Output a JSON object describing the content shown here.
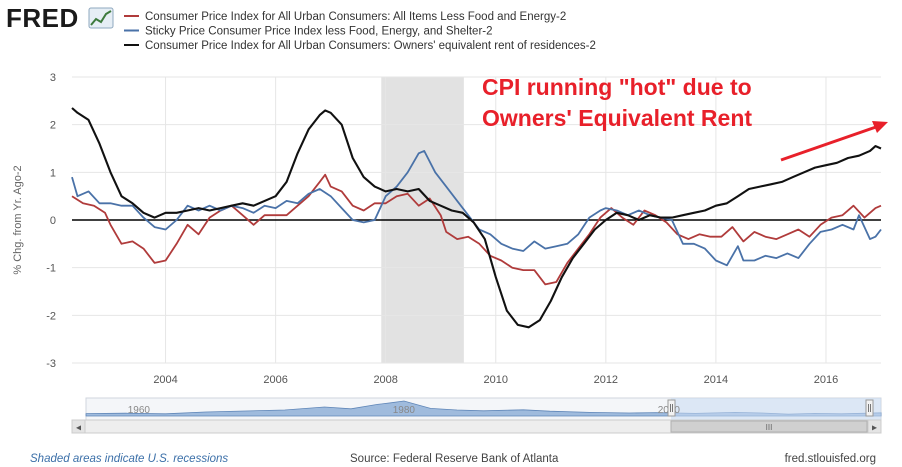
{
  "brand": {
    "logo_text": "FRED"
  },
  "annotation": {
    "lines": [
      "CPI running \"hot\" due to",
      "Owners' Equivalent Rent"
    ],
    "color": "#e8202a"
  },
  "footer": {
    "recession_note": "Shaded areas indicate U.S. recessions",
    "source": "Source: Federal Reserve Bank of Atlanta",
    "site": "fred.stlouisfed.org"
  },
  "navigator": {
    "tick_labels": [
      {
        "x": 1960,
        "label": "1960"
      },
      {
        "x": 1980,
        "label": "1980"
      },
      {
        "x": 2000,
        "label": "2000"
      }
    ],
    "scroll_glyph": "III",
    "left_arrow": "◂",
    "right_arrow": "▸"
  },
  "chart_data": {
    "type": "line",
    "ylabel": "% Chg. from Yr. Ago-2",
    "xlim": [
      2002.3,
      2017.0
    ],
    "ylim": [
      -3,
      3
    ],
    "yticks": [
      -3,
      -2,
      -1,
      0,
      1,
      2,
      3
    ],
    "xticks": [
      2004,
      2006,
      2008,
      2010,
      2012,
      2014,
      2016
    ],
    "grid": true,
    "legend_position": "top-left",
    "recessions": [
      [
        2007.92,
        2009.42
      ]
    ],
    "series": [
      {
        "name": "Consumer Price Index for All Urban Consumers: All Items Less Food and Energy-2",
        "color": "#b03b3b",
        "points": [
          [
            2002.3,
            0.5
          ],
          [
            2002.5,
            0.35
          ],
          [
            2002.7,
            0.3
          ],
          [
            2002.9,
            0.15
          ],
          [
            2003.0,
            -0.1
          ],
          [
            2003.2,
            -0.5
          ],
          [
            2003.4,
            -0.45
          ],
          [
            2003.6,
            -0.6
          ],
          [
            2003.8,
            -0.9
          ],
          [
            2004.0,
            -0.85
          ],
          [
            2004.2,
            -0.5
          ],
          [
            2004.4,
            -0.1
          ],
          [
            2004.6,
            -0.3
          ],
          [
            2004.8,
            0.05
          ],
          [
            2005.0,
            0.2
          ],
          [
            2005.2,
            0.3
          ],
          [
            2005.4,
            0.1
          ],
          [
            2005.6,
            -0.1
          ],
          [
            2005.8,
            0.1
          ],
          [
            2006.0,
            0.1
          ],
          [
            2006.2,
            0.1
          ],
          [
            2006.4,
            0.3
          ],
          [
            2006.6,
            0.5
          ],
          [
            2006.8,
            0.8
          ],
          [
            2006.9,
            0.95
          ],
          [
            2007.0,
            0.7
          ],
          [
            2007.2,
            0.6
          ],
          [
            2007.4,
            0.3
          ],
          [
            2007.6,
            0.2
          ],
          [
            2007.8,
            0.35
          ],
          [
            2008.0,
            0.35
          ],
          [
            2008.2,
            0.5
          ],
          [
            2008.4,
            0.55
          ],
          [
            2008.6,
            0.3
          ],
          [
            2008.8,
            0.45
          ],
          [
            2009.0,
            0.1
          ],
          [
            2009.1,
            -0.25
          ],
          [
            2009.3,
            -0.4
          ],
          [
            2009.5,
            -0.35
          ],
          [
            2009.7,
            -0.5
          ],
          [
            2009.9,
            -0.75
          ],
          [
            2010.1,
            -0.85
          ],
          [
            2010.3,
            -1.0
          ],
          [
            2010.5,
            -1.05
          ],
          [
            2010.7,
            -1.05
          ],
          [
            2010.9,
            -1.35
          ],
          [
            2011.1,
            -1.3
          ],
          [
            2011.3,
            -0.9
          ],
          [
            2011.5,
            -0.6
          ],
          [
            2011.7,
            -0.3
          ],
          [
            2011.9,
            0.05
          ],
          [
            2012.1,
            0.25
          ],
          [
            2012.3,
            0.05
          ],
          [
            2012.5,
            -0.1
          ],
          [
            2012.7,
            0.2
          ],
          [
            2012.9,
            0.1
          ],
          [
            2013.1,
            -0.05
          ],
          [
            2013.3,
            -0.3
          ],
          [
            2013.5,
            -0.4
          ],
          [
            2013.7,
            -0.3
          ],
          [
            2013.9,
            -0.35
          ],
          [
            2014.1,
            -0.35
          ],
          [
            2014.3,
            -0.15
          ],
          [
            2014.5,
            -0.45
          ],
          [
            2014.7,
            -0.25
          ],
          [
            2014.9,
            -0.35
          ],
          [
            2015.1,
            -0.4
          ],
          [
            2015.3,
            -0.3
          ],
          [
            2015.5,
            -0.2
          ],
          [
            2015.7,
            -0.35
          ],
          [
            2015.9,
            -0.1
          ],
          [
            2016.1,
            0.05
          ],
          [
            2016.3,
            0.1
          ],
          [
            2016.5,
            0.3
          ],
          [
            2016.7,
            0.05
          ],
          [
            2016.9,
            0.25
          ],
          [
            2017.0,
            0.3
          ]
        ]
      },
      {
        "name": "Sticky Price Consumer Price Index less Food, Energy, and Shelter-2",
        "color": "#4a72a8",
        "points": [
          [
            2002.3,
            0.9
          ],
          [
            2002.4,
            0.5
          ],
          [
            2002.6,
            0.6
          ],
          [
            2002.8,
            0.35
          ],
          [
            2003.0,
            0.35
          ],
          [
            2003.2,
            0.3
          ],
          [
            2003.4,
            0.3
          ],
          [
            2003.6,
            0.05
          ],
          [
            2003.8,
            -0.15
          ],
          [
            2004.0,
            -0.2
          ],
          [
            2004.2,
            0.0
          ],
          [
            2004.4,
            0.3
          ],
          [
            2004.6,
            0.2
          ],
          [
            2004.8,
            0.3
          ],
          [
            2005.0,
            0.2
          ],
          [
            2005.2,
            0.3
          ],
          [
            2005.4,
            0.25
          ],
          [
            2005.6,
            0.15
          ],
          [
            2005.8,
            0.3
          ],
          [
            2006.0,
            0.25
          ],
          [
            2006.2,
            0.4
          ],
          [
            2006.4,
            0.35
          ],
          [
            2006.6,
            0.55
          ],
          [
            2006.8,
            0.65
          ],
          [
            2007.0,
            0.5
          ],
          [
            2007.2,
            0.25
          ],
          [
            2007.4,
            0.0
          ],
          [
            2007.6,
            -0.05
          ],
          [
            2007.8,
            0.0
          ],
          [
            2008.0,
            0.5
          ],
          [
            2008.2,
            0.7
          ],
          [
            2008.4,
            1.0
          ],
          [
            2008.6,
            1.4
          ],
          [
            2008.7,
            1.45
          ],
          [
            2008.9,
            1.0
          ],
          [
            2009.1,
            0.7
          ],
          [
            2009.3,
            0.4
          ],
          [
            2009.5,
            0.1
          ],
          [
            2009.7,
            -0.2
          ],
          [
            2009.9,
            -0.3
          ],
          [
            2010.1,
            -0.5
          ],
          [
            2010.3,
            -0.6
          ],
          [
            2010.5,
            -0.65
          ],
          [
            2010.7,
            -0.45
          ],
          [
            2010.9,
            -0.6
          ],
          [
            2011.1,
            -0.55
          ],
          [
            2011.3,
            -0.5
          ],
          [
            2011.5,
            -0.3
          ],
          [
            2011.7,
            0.05
          ],
          [
            2011.9,
            0.2
          ],
          [
            2012.0,
            0.25
          ],
          [
            2012.2,
            0.2
          ],
          [
            2012.4,
            0.1
          ],
          [
            2012.6,
            0.2
          ],
          [
            2012.8,
            0.1
          ],
          [
            2013.0,
            0.05
          ],
          [
            2013.2,
            0.0
          ],
          [
            2013.4,
            -0.5
          ],
          [
            2013.6,
            -0.5
          ],
          [
            2013.8,
            -0.6
          ],
          [
            2014.0,
            -0.85
          ],
          [
            2014.2,
            -0.95
          ],
          [
            2014.4,
            -0.55
          ],
          [
            2014.5,
            -0.85
          ],
          [
            2014.7,
            -0.85
          ],
          [
            2014.9,
            -0.75
          ],
          [
            2015.1,
            -0.8
          ],
          [
            2015.3,
            -0.7
          ],
          [
            2015.5,
            -0.8
          ],
          [
            2015.7,
            -0.5
          ],
          [
            2015.9,
            -0.25
          ],
          [
            2016.1,
            -0.2
          ],
          [
            2016.3,
            -0.1
          ],
          [
            2016.5,
            -0.2
          ],
          [
            2016.6,
            0.1
          ],
          [
            2016.8,
            -0.4
          ],
          [
            2016.9,
            -0.35
          ],
          [
            2017.0,
            -0.2
          ]
        ]
      },
      {
        "name": "Consumer Price Index for All Urban Consumers: Owners' equivalent rent of residences-2",
        "color": "#111111",
        "points": [
          [
            2002.3,
            2.35
          ],
          [
            2002.4,
            2.25
          ],
          [
            2002.6,
            2.1
          ],
          [
            2002.8,
            1.6
          ],
          [
            2003.0,
            1.0
          ],
          [
            2003.2,
            0.5
          ],
          [
            2003.4,
            0.35
          ],
          [
            2003.6,
            0.15
          ],
          [
            2003.8,
            0.05
          ],
          [
            2004.0,
            0.15
          ],
          [
            2004.2,
            0.15
          ],
          [
            2004.4,
            0.2
          ],
          [
            2004.6,
            0.25
          ],
          [
            2004.8,
            0.2
          ],
          [
            2005.0,
            0.25
          ],
          [
            2005.2,
            0.3
          ],
          [
            2005.4,
            0.35
          ],
          [
            2005.6,
            0.3
          ],
          [
            2005.8,
            0.4
          ],
          [
            2006.0,
            0.5
          ],
          [
            2006.2,
            0.8
          ],
          [
            2006.4,
            1.4
          ],
          [
            2006.6,
            1.9
          ],
          [
            2006.8,
            2.2
          ],
          [
            2006.9,
            2.3
          ],
          [
            2007.0,
            2.25
          ],
          [
            2007.2,
            2.0
          ],
          [
            2007.4,
            1.3
          ],
          [
            2007.6,
            0.9
          ],
          [
            2007.8,
            0.7
          ],
          [
            2008.0,
            0.6
          ],
          [
            2008.2,
            0.65
          ],
          [
            2008.4,
            0.6
          ],
          [
            2008.6,
            0.65
          ],
          [
            2008.8,
            0.4
          ],
          [
            2009.0,
            0.3
          ],
          [
            2009.2,
            0.2
          ],
          [
            2009.4,
            0.15
          ],
          [
            2009.6,
            -0.05
          ],
          [
            2009.8,
            -0.4
          ],
          [
            2010.0,
            -1.2
          ],
          [
            2010.2,
            -1.9
          ],
          [
            2010.4,
            -2.2
          ],
          [
            2010.6,
            -2.25
          ],
          [
            2010.8,
            -2.1
          ],
          [
            2011.0,
            -1.7
          ],
          [
            2011.2,
            -1.2
          ],
          [
            2011.4,
            -0.8
          ],
          [
            2011.6,
            -0.5
          ],
          [
            2011.8,
            -0.2
          ],
          [
            2012.0,
            0.0
          ],
          [
            2012.2,
            0.15
          ],
          [
            2012.4,
            0.1
          ],
          [
            2012.6,
            0.0
          ],
          [
            2012.8,
            0.1
          ],
          [
            2013.0,
            0.05
          ],
          [
            2013.2,
            0.05
          ],
          [
            2013.4,
            0.1
          ],
          [
            2013.6,
            0.15
          ],
          [
            2013.8,
            0.2
          ],
          [
            2014.0,
            0.3
          ],
          [
            2014.2,
            0.35
          ],
          [
            2014.4,
            0.5
          ],
          [
            2014.6,
            0.65
          ],
          [
            2014.8,
            0.7
          ],
          [
            2015.0,
            0.75
          ],
          [
            2015.2,
            0.8
          ],
          [
            2015.4,
            0.9
          ],
          [
            2015.6,
            1.0
          ],
          [
            2015.8,
            1.1
          ],
          [
            2016.0,
            1.15
          ],
          [
            2016.2,
            1.2
          ],
          [
            2016.4,
            1.3
          ],
          [
            2016.6,
            1.35
          ],
          [
            2016.8,
            1.45
          ],
          [
            2016.9,
            1.55
          ],
          [
            2017.0,
            1.5
          ]
        ]
      }
    ]
  }
}
